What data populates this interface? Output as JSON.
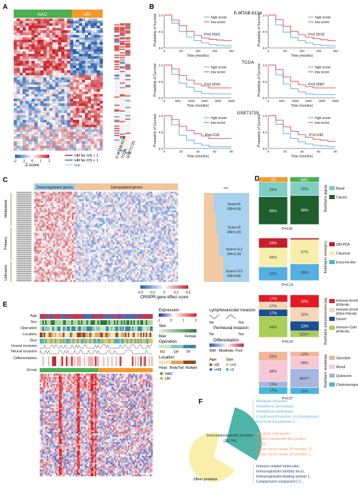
{
  "panels": {
    "A": {
      "label": "A",
      "groups": [
        "NAC",
        "UR"
      ],
      "legend_title": "Z-score",
      "scale_ticks": [
        "-2",
        "-1",
        "0",
        "1",
        "2"
      ],
      "hr_labels": [
        "HR for OS > 1",
        "HR for OS < 1",
        "n.s."
      ],
      "datasets": [
        "E-MTAB-6134",
        "TCGA",
        "GSE71729"
      ]
    },
    "B": {
      "label": "B",
      "datasets": [
        "E-MTAB-6134",
        "TCGA",
        "GSE71729"
      ],
      "legend": [
        "high score",
        "low score"
      ],
      "ylabel": "Probability of Survival",
      "xlabel": "Time (months)",
      "plots": [
        {
          "p": "P=0.0001",
          "xticks": [
            "0",
            "50",
            "100",
            "150",
            "200"
          ]
        },
        {
          "p": "P=0.0018",
          "xticks": [
            "0",
            "50",
            "100",
            "150",
            "200"
          ]
        },
        {
          "p": "P=0.0026",
          "xticks": [
            "0",
            "500",
            "1000",
            "1500",
            "2000",
            "2500"
          ]
        },
        {
          "p": "P=0.0087",
          "xticks": [
            "0",
            "500",
            "1000",
            "1500",
            "2000",
            "2500"
          ]
        },
        {
          "p": "P=0.018",
          "xticks": [
            "0",
            "20",
            "40",
            "60",
            "80"
          ]
        },
        {
          "p": "P=0.042",
          "xticks": [
            "0",
            "20",
            "40",
            "60",
            "80"
          ]
        }
      ],
      "yticks": [
        "0.0",
        "0.5",
        "1.0"
      ]
    },
    "C": {
      "label": "C",
      "down_label": "Downregulated genes",
      "up_label": "Upregulated genes",
      "row_groups": [
        "Metastasis",
        "Primary",
        "Unknown"
      ],
      "colorbar_title": "CRISPR-gene effect score",
      "colorbar_ticks": [
        "-0.5",
        "-0.2",
        "0",
        "0.2",
        "0.5"
      ],
      "stars": "***",
      "scores": [
        {
          "score": "Score>0",
          "rr": "RR=0.68"
        },
        {
          "score": "Score<0",
          "rr": "RR=1.09"
        },
        {
          "score": "Score<-0.2",
          "rr": "RR=2.34"
        },
        {
          "score": "Score<-0.5",
          "rr": "RR=4.66"
        }
      ]
    },
    "D": {
      "label": "D",
      "columns": [
        "UR",
        "NAC"
      ],
      "subplots": [
        {
          "title": "Moffitt subtyping",
          "p": "P=0.81",
          "legend": [
            {
              "name": "Basal",
              "color": "#7fcfc4"
            },
            {
              "name": "Classic",
              "color": "#1e5e2c"
            }
          ],
          "ur": [
            {
              "v": "35%",
              "f": 0.35,
              "c": "#7fcfc4"
            },
            {
              "v": "65%",
              "f": 0.65,
              "c": "#1e5e2c"
            }
          ],
          "nac": [
            {
              "v": "32%",
              "f": 0.32,
              "c": "#7fcfc4"
            },
            {
              "v": "68%",
              "f": 0.68,
              "c": "#1e5e2c"
            }
          ]
        },
        {
          "title": "Collisson subtyping",
          "p": "P=0.14",
          "legend": [
            {
              "name": "QM-PDA",
              "color": "#c61f2a"
            },
            {
              "name": "Classical",
              "color": "#f7eeaa"
            },
            {
              "name": "Exocrine-like",
              "color": "#55afe0"
            }
          ],
          "ur": [
            {
              "v": "23%",
              "f": 0.23,
              "c": "#c61f2a"
            },
            {
              "v": "45%",
              "f": 0.45,
              "c": "#f7eeaa"
            },
            {
              "v": "32%",
              "f": 0.32,
              "c": "#55afe0"
            }
          ],
          "nac": [
            {
              "v": "4%",
              "f": 0.04,
              "c": "#c61f2a"
            },
            {
              "v": "57%",
              "f": 0.57,
              "c": "#f7eeaa"
            },
            {
              "v": "39%",
              "f": 0.39,
              "c": "#55afe0"
            }
          ]
        },
        {
          "title": "Microenvironment subtyping",
          "p": "P=0.03",
          "legend": [
            {
              "name": "Immune-Enriched &Fibrotic",
              "color": "#e01b24"
            },
            {
              "name": "Immune-Enriched &Non-Fibrotic",
              "color": "#f4d7b4"
            },
            {
              "name": "Desert",
              "color": "#1c4f8f"
            },
            {
              "name": "Immune-Cold &Fibrotic",
              "color": "#a9cf58"
            }
          ],
          "ur": [
            {
              "v": "17%",
              "f": 0.17,
              "c": "#e01b24"
            },
            {
              "v": "17%",
              "f": 0.17,
              "c": "#f4d7b4"
            },
            {
              "v": "17%",
              "f": 0.17,
              "c": "#1c4f8f"
            },
            {
              "v": "49%",
              "f": 0.49,
              "c": "#a9cf58"
            }
          ],
          "nac": [
            {
              "v": "30%",
              "f": 0.3,
              "c": "#e01b24"
            },
            {
              "v": "32%",
              "f": 0.32,
              "c": "#f4d7b4"
            },
            {
              "v": "23%",
              "f": 0.23,
              "c": "#1c4f8f"
            },
            {
              "v": "15%**",
              "f": 0.15,
              "c": "#a9cf58"
            }
          ]
        },
        {
          "title": "Metabolic subtyping",
          "p": "P=0.07",
          "legend": [
            {
              "name": "Glycolytic",
              "color": "#f2b49a"
            },
            {
              "name": "Mixed",
              "color": "#f6c8d6"
            },
            {
              "name": "Quiescent",
              "color": "#a7b6e0"
            },
            {
              "name": "Cholesterogenic",
              "color": "#4cb5d8"
            }
          ],
          "ur": [
            {
              "v": "22%",
              "f": 0.22,
              "c": "#f2b49a"
            },
            {
              "v": "48%",
              "f": 0.48,
              "c": "#f6c8d6"
            },
            {
              "v": "13%",
              "f": 0.13,
              "c": "#a7b6e0"
            },
            {
              "v": "17%",
              "f": 0.17,
              "c": "#4cb5d8"
            }
          ],
          "nac": [
            {
              "v": "12%",
              "f": 0.12,
              "c": "#f2b49a"
            },
            {
              "v": "28%",
              "f": 0.28,
              "c": "#f6c8d6"
            },
            {
              "v": "45%**",
              "f": 0.45,
              "c": "#a7b6e0"
            },
            {
              "v": "15%",
              "f": 0.15,
              "c": "#4cb5d8"
            }
          ]
        }
      ]
    },
    "E": {
      "label": "E",
      "rows": [
        "Age",
        "Sex",
        "Operation",
        "Location",
        "Size",
        "Vessel invasion",
        "Neural invasion",
        "Differentiation",
        "Group"
      ],
      "expression_title": "Expression",
      "expression_ticks": [
        "-1",
        "0",
        "1",
        "2"
      ],
      "sex_title": "Sex",
      "sex_values": [
        "Male",
        "Female"
      ],
      "operation_title": "Operation",
      "operation_values": [
        "PD",
        "DP",
        "TP"
      ],
      "location_title": "Location",
      "location_values": [
        "Head",
        "Body/Tail",
        "Multiple"
      ],
      "lymph_title": "Lymphovascular invasion",
      "lymph_values": [
        "No",
        "Yes"
      ],
      "perineural_title": "Perineural invasion",
      "perineural_values": [
        "No",
        "Yes"
      ],
      "diff_title": "Differentiation",
      "diff_values": [
        "Well",
        "Moderate",
        "Poor"
      ],
      "age_title": "Age:",
      "age_values": [
        "<65",
        ">=65"
      ],
      "size_title": "Size:",
      "size_values": [
        "<=3",
        ">3"
      ],
      "group_values": [
        "NAC",
        "UR"
      ]
    },
    "F": {
      "label": "F",
      "slices": [
        {
          "name": "Immune&metabolic proteins",
          "pct": "(29.7%)",
          "value": 29.7,
          "color": "#4fb3a7"
        },
        {
          "name": "Other proteins",
          "pct": "",
          "value": 70.3,
          "color": "#f9efa9"
        }
      ],
      "groups": [
        {
          "title": "Metabolic enzymes:",
          "color": "#5bb4d8",
          "items": [
            "Glutathione peroxidase,",
            "Glutathione synthetase,",
            "3-hydroxyanthranilate 3,4-dioxygenase,",
            "Acyl-CoA thioesterase 1..."
          ]
        },
        {
          "title": "Metabolic transporter:",
          "color": "#f09a6a",
          "items": [
            "Choline transporter-like protein,",
            "CD36,",
            "Solute carrier family 29 member 11,",
            "Solute carrier family 29 member 1..."
          ]
        },
        {
          "title": "Immune-related molecules:",
          "color": "#1f3d6e",
          "items": [
            "Immunoglobulin lambda locus,",
            "Immunoglobulin-binding protein 1,",
            "Complement component C7..."
          ]
        }
      ]
    }
  }
}
